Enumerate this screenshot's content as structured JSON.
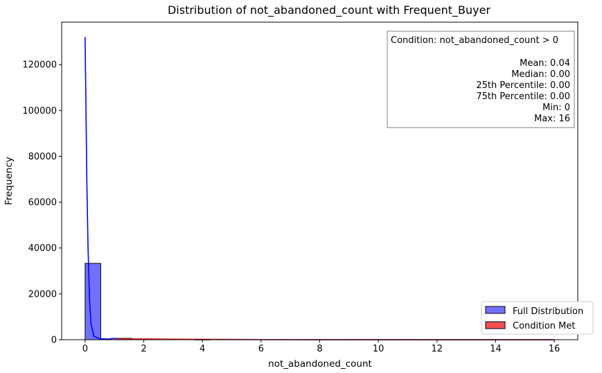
{
  "chart_data": {
    "type": "histogram",
    "title": "Distribution of not_abandoned_count with Frequent_Buyer",
    "xlabel": "not_abandoned_count",
    "ylabel": "Frequency",
    "xlim": [
      -0.8,
      16.8
    ],
    "ylim": [
      0,
      138500
    ],
    "xticks": [
      0,
      2,
      4,
      6,
      8,
      10,
      12,
      14,
      16
    ],
    "yticks": [
      0,
      20000,
      40000,
      60000,
      80000,
      100000,
      120000
    ],
    "bin_width": 0.5333,
    "series": [
      {
        "name": "Full Distribution",
        "color": "#7070ff",
        "edge_color": "#000000",
        "line_color": "#0000ff",
        "bins": [
          {
            "x0": 0.0,
            "x1": 0.5333,
            "count": 33300
          },
          {
            "x0": 1.0667,
            "x1": 1.6,
            "count": 600
          },
          {
            "x0": 1.6,
            "x1": 2.1333,
            "count": 300
          },
          {
            "x0": 2.6667,
            "x1": 3.2,
            "count": 200
          },
          {
            "x0": 3.7333,
            "x1": 4.2667,
            "count": 100
          }
        ],
        "kde": [
          [
            0.0,
            132000
          ],
          [
            0.03,
            100000
          ],
          [
            0.06,
            68000
          ],
          [
            0.1,
            40000
          ],
          [
            0.15,
            18000
          ],
          [
            0.2,
            7000
          ],
          [
            0.3,
            1500
          ],
          [
            0.5,
            400
          ],
          [
            0.8,
            300
          ],
          [
            1.0,
            600
          ],
          [
            1.2,
            300
          ],
          [
            1.6,
            150
          ],
          [
            2.0,
            350
          ],
          [
            2.4,
            100
          ],
          [
            3.0,
            200
          ],
          [
            4.0,
            100
          ],
          [
            6.0,
            50
          ],
          [
            10.0,
            20
          ],
          [
            16.0,
            10
          ]
        ]
      },
      {
        "name": "Condition Met",
        "color": "#f05050",
        "edge_color": "#000000",
        "line_color": "#e02020",
        "bins": [
          {
            "x0": 1.0667,
            "x1": 1.6,
            "count": 600
          },
          {
            "x0": 1.6,
            "x1": 2.1333,
            "count": 300
          },
          {
            "x0": 2.6667,
            "x1": 3.2,
            "count": 200
          },
          {
            "x0": 3.7333,
            "x1": 4.2667,
            "count": 100
          }
        ],
        "kde": [
          [
            1.0,
            300
          ],
          [
            2.0,
            350
          ],
          [
            3.0,
            250
          ],
          [
            4.0,
            180
          ],
          [
            5.0,
            120
          ],
          [
            6.0,
            80
          ],
          [
            8.0,
            50
          ],
          [
            12.0,
            25
          ],
          [
            16.0,
            10
          ]
        ]
      }
    ],
    "legend_position": "lower-right",
    "stats_box": {
      "position": "upper-right",
      "condition": "Condition: not_abandoned_count > 0",
      "lines": [
        "Mean: 0.04",
        "Median: 0.00",
        "25th Percentile: 0.00",
        "75th Percentile: 0.00",
        "Min: 0",
        "Max: 16"
      ]
    }
  }
}
